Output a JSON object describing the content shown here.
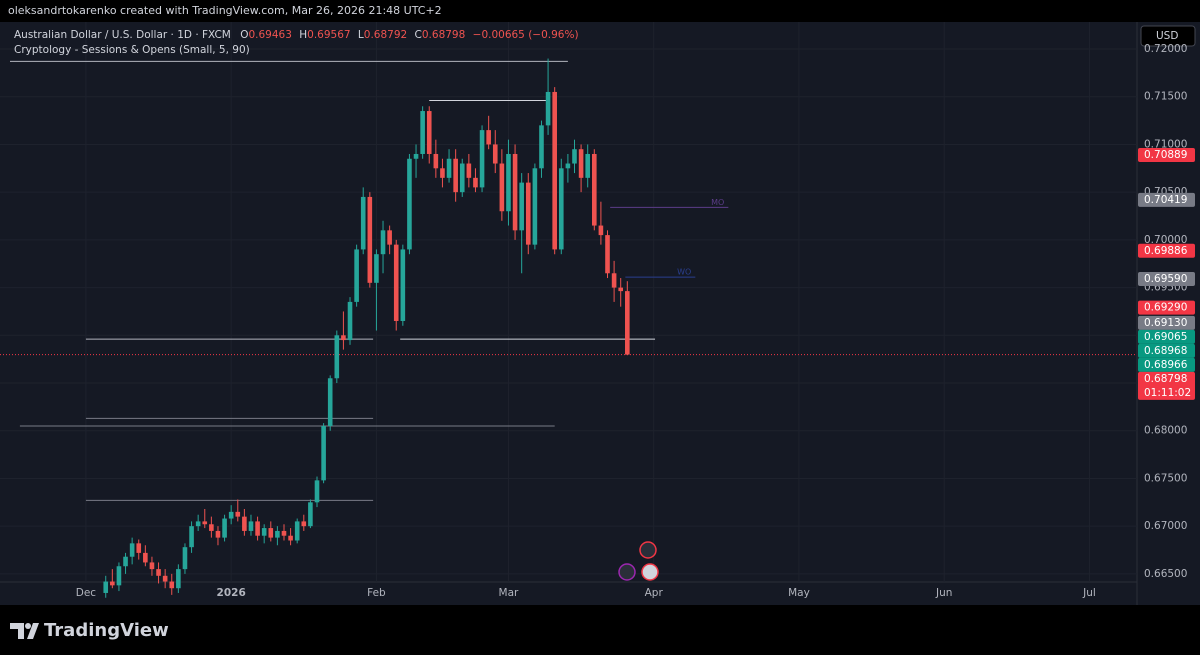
{
  "header": {
    "credit": "oleksandrtokarenko created with TradingView.com, Mar 26, 2026 21:48 UTC+2",
    "symbol": "Australian Dollar / U.S. Dollar · 1D · FXCM",
    "ohlc": [
      {
        "key": "O",
        "value": "0.69463"
      },
      {
        "key": "H",
        "value": "0.69567"
      },
      {
        "key": "L",
        "value": "0.68792"
      },
      {
        "key": "C",
        "value": "0.68798"
      }
    ],
    "change": "−0.00665 (−0.96%)",
    "indicator": "Cryptology - Sessions & Opens (Small, 5, 90)",
    "currency": "USD"
  },
  "footer": {
    "brand": "TradingView"
  },
  "chart_data": {
    "type": "candlestick",
    "up_color": "#26a69a",
    "down_color": "#ef5350",
    "xlim": [
      -11.5,
      159.2
    ],
    "xticks": [
      {
        "value": 0,
        "label": "Dec"
      },
      {
        "value": 22,
        "label": "2026"
      },
      {
        "value": 44,
        "label": "Feb"
      },
      {
        "value": 64,
        "label": "Mar"
      },
      {
        "value": 86,
        "label": "Apr"
      },
      {
        "value": 108,
        "label": "May"
      },
      {
        "value": 130,
        "label": "Jun"
      },
      {
        "value": 152,
        "label": "Jul"
      }
    ],
    "ylim": [
      0.66415,
      0.72042
    ],
    "yticks": [
      {
        "value": 0.665,
        "label": "0.66500"
      },
      {
        "value": 0.67,
        "label": "0.67000"
      },
      {
        "value": 0.675,
        "label": "0.67500"
      },
      {
        "value": 0.68,
        "label": "0.68000"
      },
      {
        "value": 0.685,
        "label": "0.68500"
      },
      {
        "value": 0.69,
        "label": "0.69000"
      },
      {
        "value": 0.695,
        "label": "0.69500"
      },
      {
        "value": 0.7,
        "label": "0.70000"
      },
      {
        "value": 0.705,
        "label": "0.70500"
      },
      {
        "value": 0.71,
        "label": "0.71000"
      },
      {
        "value": 0.715,
        "label": "0.71500"
      },
      {
        "value": 0.72,
        "label": "0.72000"
      }
    ],
    "x": [
      3,
      4,
      5,
      6,
      7,
      8,
      9,
      10,
      11,
      12,
      13,
      14,
      15,
      16,
      17,
      18,
      19,
      20,
      21,
      22,
      23,
      24,
      25,
      26,
      27,
      28,
      29,
      30,
      31,
      32,
      33,
      34,
      35,
      36,
      37,
      38,
      39,
      40,
      41,
      42,
      43,
      44,
      45,
      46,
      47,
      48,
      49,
      50,
      51,
      52,
      53,
      54,
      55,
      56,
      57,
      58,
      59,
      60,
      61,
      62,
      63,
      64,
      65,
      66,
      67,
      68,
      69,
      70,
      71,
      72,
      73,
      74,
      75,
      76,
      77,
      78,
      79,
      80,
      81,
      82
    ],
    "open": [
      0.663,
      0.6642,
      0.6638,
      0.6658,
      0.6668,
      0.6682,
      0.6672,
      0.6662,
      0.6655,
      0.6648,
      0.6642,
      0.6635,
      0.6655,
      0.6678,
      0.67,
      0.6705,
      0.6702,
      0.6695,
      0.6688,
      0.6708,
      0.6715,
      0.671,
      0.6695,
      0.6705,
      0.669,
      0.6698,
      0.6688,
      0.6695,
      0.669,
      0.6685,
      0.6705,
      0.67,
      0.6725,
      0.6748,
      0.6805,
      0.6855,
      0.69,
      0.6895,
      0.6935,
      0.699,
      0.7045,
      0.6955,
      0.6985,
      0.701,
      0.6995,
      0.6915,
      0.699,
      0.7085,
      0.709,
      0.7135,
      0.709,
      0.7075,
      0.7065,
      0.7085,
      0.705,
      0.708,
      0.7065,
      0.7055,
      0.7115,
      0.71,
      0.708,
      0.703,
      0.709,
      0.701,
      0.706,
      0.6995,
      0.7075,
      0.712,
      0.7155,
      0.699,
      0.7075,
      0.708,
      0.7095,
      0.7065,
      0.709,
      0.7015,
      0.7005,
      0.6965,
      0.695,
      0.69463
    ],
    "high": [
      0.6648,
      0.6655,
      0.6662,
      0.6672,
      0.6688,
      0.6686,
      0.668,
      0.6668,
      0.6662,
      0.6655,
      0.665,
      0.666,
      0.6682,
      0.6705,
      0.6712,
      0.6718,
      0.671,
      0.67,
      0.6712,
      0.6722,
      0.6728,
      0.6718,
      0.6712,
      0.671,
      0.6702,
      0.6705,
      0.67,
      0.6702,
      0.6698,
      0.6708,
      0.6712,
      0.6728,
      0.6752,
      0.6808,
      0.6858,
      0.6905,
      0.6925,
      0.694,
      0.6995,
      0.7055,
      0.705,
      0.699,
      0.702,
      0.7015,
      0.7,
      0.6995,
      0.709,
      0.71,
      0.714,
      0.714,
      0.7105,
      0.7085,
      0.7095,
      0.7095,
      0.7085,
      0.709,
      0.7075,
      0.712,
      0.713,
      0.7115,
      0.7095,
      0.7105,
      0.71,
      0.707,
      0.707,
      0.708,
      0.7125,
      0.719,
      0.716,
      0.7085,
      0.709,
      0.7105,
      0.71,
      0.71,
      0.7095,
      0.704,
      0.701,
      0.6978,
      0.696,
      0.69567
    ],
    "low": [
      0.6625,
      0.6635,
      0.6632,
      0.665,
      0.666,
      0.6665,
      0.6658,
      0.6648,
      0.664,
      0.6635,
      0.6628,
      0.663,
      0.665,
      0.6672,
      0.6695,
      0.6698,
      0.6688,
      0.668,
      0.6684,
      0.6702,
      0.6705,
      0.669,
      0.669,
      0.6685,
      0.6682,
      0.6684,
      0.668,
      0.6685,
      0.668,
      0.6682,
      0.6695,
      0.6698,
      0.672,
      0.6745,
      0.68,
      0.685,
      0.6885,
      0.689,
      0.693,
      0.6985,
      0.695,
      0.6905,
      0.6965,
      0.6985,
      0.6905,
      0.691,
      0.6985,
      0.7065,
      0.7085,
      0.708,
      0.7065,
      0.7055,
      0.706,
      0.704,
      0.7045,
      0.7055,
      0.705,
      0.705,
      0.7095,
      0.707,
      0.702,
      0.7015,
      0.7,
      0.6965,
      0.6985,
      0.699,
      0.7065,
      0.711,
      0.6985,
      0.6985,
      0.706,
      0.707,
      0.705,
      0.7055,
      0.701,
      0.6995,
      0.696,
      0.6935,
      0.693,
      0.68792
    ],
    "close": [
      0.6642,
      0.6638,
      0.6658,
      0.6668,
      0.6682,
      0.6672,
      0.6662,
      0.6655,
      0.6648,
      0.6642,
      0.6635,
      0.6655,
      0.6678,
      0.67,
      0.6705,
      0.6702,
      0.6695,
      0.6688,
      0.6708,
      0.6715,
      0.671,
      0.6695,
      0.6705,
      0.669,
      0.6698,
      0.6688,
      0.6695,
      0.669,
      0.6685,
      0.6705,
      0.67,
      0.6725,
      0.6748,
      0.6805,
      0.6855,
      0.69,
      0.6895,
      0.6935,
      0.699,
      0.7045,
      0.6955,
      0.6985,
      0.701,
      0.6995,
      0.6915,
      0.699,
      0.7085,
      0.709,
      0.7135,
      0.709,
      0.7075,
      0.7065,
      0.7085,
      0.705,
      0.708,
      0.7065,
      0.7055,
      0.7115,
      0.71,
      0.708,
      0.703,
      0.709,
      0.701,
      0.706,
      0.6995,
      0.7075,
      0.712,
      0.7155,
      0.699,
      0.7075,
      0.708,
      0.7095,
      0.7065,
      0.709,
      0.7015,
      0.7005,
      0.6965,
      0.695,
      0.69463,
      0.68798
    ],
    "levels": [
      {
        "value": 0.7187,
        "from": -11.5,
        "to": 73,
        "color": "#b2b5be"
      },
      {
        "value": 0.7146,
        "from": 52,
        "to": 70,
        "color": "#d1d4dc"
      },
      {
        "value": 0.6896,
        "from": 0,
        "to": 43.5,
        "color": "#b2b5be"
      },
      {
        "value": 0.6896,
        "from": 47.6,
        "to": 86.2,
        "color": "#d1d4dc"
      },
      {
        "value": 0.6813,
        "from": 0,
        "to": 43.5,
        "color": "#787b86"
      },
      {
        "value": 0.6805,
        "from": -10,
        "to": 71,
        "color": "#787b86"
      },
      {
        "value": 0.6727,
        "from": 0,
        "to": 43.5,
        "color": "#787b86"
      },
      {
        "value": 0.7034,
        "from": 79.4,
        "to": 97.3,
        "color": "#5b3c88",
        "label": "MO"
      },
      {
        "value": 0.6961,
        "from": 81.7,
        "to": 92.3,
        "color": "#2a3f8f",
        "label": "WO"
      }
    ],
    "price_tags": [
      {
        "value": 0.70889,
        "label": "0.70889",
        "color": "#f23645"
      },
      {
        "value": 0.70419,
        "label": "0.70419",
        "color": "#787b86"
      },
      {
        "value": 0.69886,
        "label": "0.69886",
        "color": "#f23645"
      },
      {
        "value": 0.6959,
        "label": "0.69590",
        "color": "#787b86"
      },
      {
        "value": 0.6929,
        "label": "0.69290",
        "color": "#f23645"
      },
      {
        "value": 0.6913,
        "label": "0.69130",
        "color": "#787b86"
      },
      {
        "value": 0.69065,
        "label": "0.69065",
        "color": "#089981"
      },
      {
        "value": 0.68968,
        "label": "0.68968",
        "color": "#089981"
      },
      {
        "value": 0.68966,
        "label": "0.68966",
        "color": "#089981"
      },
      {
        "value": 0.68798,
        "label": "0.68798",
        "color": "#f23645"
      }
    ],
    "last_price": 0.68798,
    "countdown": "01:11:02"
  }
}
